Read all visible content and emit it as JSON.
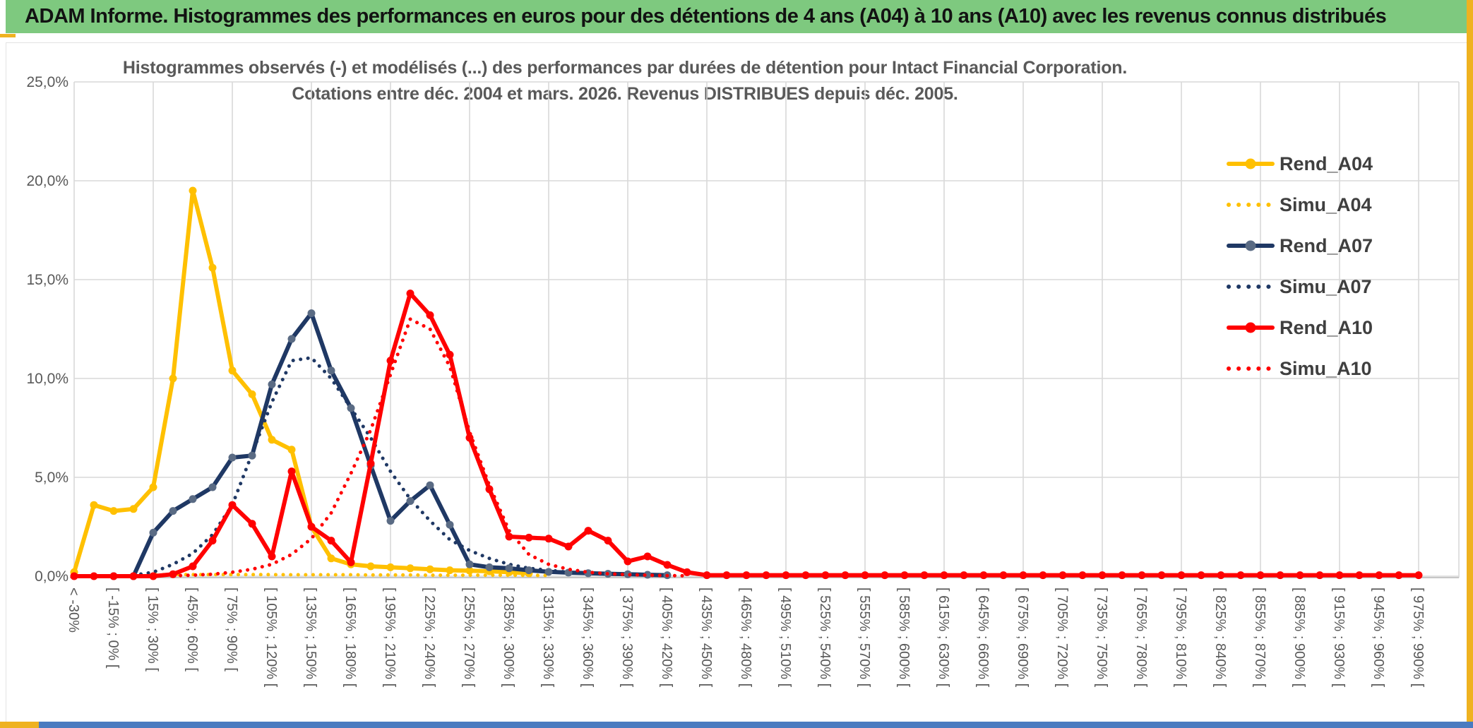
{
  "header": {
    "title": "ADAM Informe. Histogrammes des performances en euros pour des détentions de 4 ans (A04) à 10 ans (A10) avec les revenus connus distribués"
  },
  "colors": {
    "header_green": "#7EC97F",
    "accent_gold": "#EFB220",
    "bottom_blue": "#4A7BC0",
    "gold_series": "#FFC000",
    "navy_series": "#1F3864",
    "navy_marker_grey": "#5A6B84",
    "red_series": "#FF0000",
    "grid_grey": "#D9D9D9",
    "axis_grey": "#BFBFBF",
    "text_grey": "#595959",
    "legend_text": "#3F3F3F"
  },
  "chart_data": {
    "type": "line",
    "title_line1": "Histogrammes observés (-) et modélisés (...) des performances par durées de détention pour Intact Financial Corporation.",
    "title_line2": "Cotations entre déc. 2004 et mars. 2026. Revenus DISTRIBUES depuis déc. 2005.",
    "ylabel": "",
    "xlabel": "",
    "ylim": [
      0,
      25
    ],
    "grid": true,
    "legend_position": "right-inside",
    "y_tick_labels": [
      "25,0%",
      "20,0%",
      "15,0%",
      "10,0%",
      "5,0%",
      "0,0%"
    ],
    "bin_width_pct": 15,
    "x_tick_labels": [
      "< -30%",
      "[ -15% ; 0% [",
      "[ 15% ; 30% [",
      "[ 45% ; 60% [",
      "[ 75% ; 90% [",
      "[ 105% ; 120% [",
      "[ 135% ; 150% [",
      "[ 165% ; 180% [",
      "[ 195% ; 210% [",
      "[ 225% ; 240% [",
      "[ 255% ; 270% [",
      "[ 285% ; 300% [",
      "[ 315% ; 330% [",
      "[ 345% ; 360% [",
      "[ 375% ; 390% [",
      "[ 405% ; 420% [",
      "[ 435% ; 450% [",
      "[ 465% ; 480% [",
      "[ 495% ; 510% [",
      "[ 525% ; 540% [",
      "[ 555% ; 570% [",
      "[ 585% ; 600% [",
      "[ 615% ; 630% [",
      "[ 645% ; 660% [",
      "[ 675% ; 690% [",
      "[ 705% ; 720% [",
      "[ 735% ; 750% [",
      "[ 765% ; 780% [",
      "[ 795% ; 810% [",
      "[ 825% ; 840% [",
      "[ 855% ; 870% [",
      "[ 885% ; 900% [",
      "[ 915% ; 930% [",
      "[ 945% ; 960% [",
      "[ 975% ; 990% ["
    ],
    "series": [
      {
        "name": "Simu_A04",
        "style": "dotted",
        "color": "#FFC000",
        "marker": null,
        "values": [
          null,
          null,
          null,
          0.05,
          0.07,
          0.08,
          0.08,
          0.08,
          0.08,
          0.08,
          0.08,
          0.07,
          0.07,
          0.07,
          0.07,
          0.06,
          0.06,
          0.06,
          0.05,
          0.05,
          0.05,
          0.05,
          0.05,
          0.04,
          0.04
        ]
      },
      {
        "name": "Rend_A04",
        "style": "solid",
        "color": "#FFC000",
        "marker": "#FFC000",
        "values": [
          0.2,
          3.6,
          3.3,
          3.4,
          4.5,
          10,
          19.5,
          15.6,
          10.4,
          9.2,
          6.9,
          6.4,
          2.5,
          0.9,
          0.6,
          0.5,
          0.45,
          0.4,
          0.35,
          0.3,
          0.28,
          0.25,
          0.2,
          0.15
        ]
      },
      {
        "name": "Simu_A07",
        "style": "dotted",
        "color": "#1F3864",
        "marker": null,
        "values": [
          null,
          null,
          null,
          0.05,
          0.2,
          0.6,
          1.15,
          2.1,
          3.6,
          6.2,
          8.8,
          10.9,
          11.05,
          10,
          8.5,
          7,
          5.3,
          3.9,
          2.8,
          1.85,
          1.3,
          0.9,
          0.6,
          0.4,
          0.3,
          0.2,
          0.15,
          0.1,
          0.08,
          0.05,
          0.03
        ]
      },
      {
        "name": "Rend_A07",
        "style": "solid",
        "color": "#1F3864",
        "marker": "#5A6B84",
        "values": [
          null,
          null,
          0,
          0,
          2.2,
          3.3,
          3.9,
          4.5,
          6,
          6.1,
          9.7,
          12,
          13.3,
          10.4,
          8.5,
          5.6,
          2.8,
          3.8,
          4.6,
          2.6,
          0.6,
          0.45,
          0.4,
          0.3,
          0.22,
          0.18,
          0.15,
          0.12,
          0.1,
          0.07,
          0.05
        ]
      },
      {
        "name": "Simu_A10",
        "style": "dotted",
        "color": "#FF0000",
        "marker": null,
        "values": [
          null,
          null,
          null,
          null,
          null,
          0.02,
          0.05,
          0.1,
          0.2,
          0.35,
          0.6,
          1.1,
          1.9,
          3.2,
          5.2,
          7.4,
          10.2,
          13,
          12.5,
          10.6,
          7.3,
          4.6,
          2.3,
          1.1,
          0.6,
          0.35,
          0.2,
          0.12,
          0.08,
          0.05,
          0.03,
          0.02
        ]
      },
      {
        "name": "Rend_A10",
        "style": "solid",
        "color": "#FF0000",
        "marker": "#FF0000",
        "values": [
          0,
          0,
          0,
          0,
          0,
          0.1,
          0.5,
          1.8,
          3.6,
          2.65,
          1,
          5.3,
          2.5,
          1.8,
          0.7,
          5.7,
          10.9,
          14.3,
          13.2,
          11.2,
          7,
          4.4,
          2,
          1.95,
          1.9,
          1.5,
          2.3,
          1.8,
          0.75,
          1,
          0.57,
          0.2,
          0.05,
          0.05,
          0.05,
          0.05,
          0.05,
          0.05,
          0.05,
          0.05,
          0.05,
          0.05,
          0.05,
          0.05,
          0.05,
          0.05,
          0.05,
          0.05,
          0.05,
          0.05,
          0.05,
          0.05,
          0.05,
          0.05,
          0.05,
          0.05,
          0.05,
          0.05,
          0.05,
          0.05,
          0.05,
          0.05,
          0.05,
          0.05,
          0.05,
          0.05,
          0.05,
          0.05,
          0.05
        ]
      }
    ],
    "legend": [
      {
        "label": "Rend_A04",
        "style": "solid",
        "color": "#FFC000",
        "marker": "#FFC000"
      },
      {
        "label": "Simu_A04",
        "style": "dotted",
        "color": "#FFC000",
        "marker": null
      },
      {
        "label": "Rend_A07",
        "style": "solid",
        "color": "#1F3864",
        "marker": "#5A6B84"
      },
      {
        "label": "Simu_A07",
        "style": "dotted",
        "color": "#1F3864",
        "marker": null
      },
      {
        "label": "Rend_A10",
        "style": "solid",
        "color": "#FF0000",
        "marker": "#FF0000"
      },
      {
        "label": "Simu_A10",
        "style": "dotted",
        "color": "#FF0000",
        "marker": null
      }
    ]
  }
}
